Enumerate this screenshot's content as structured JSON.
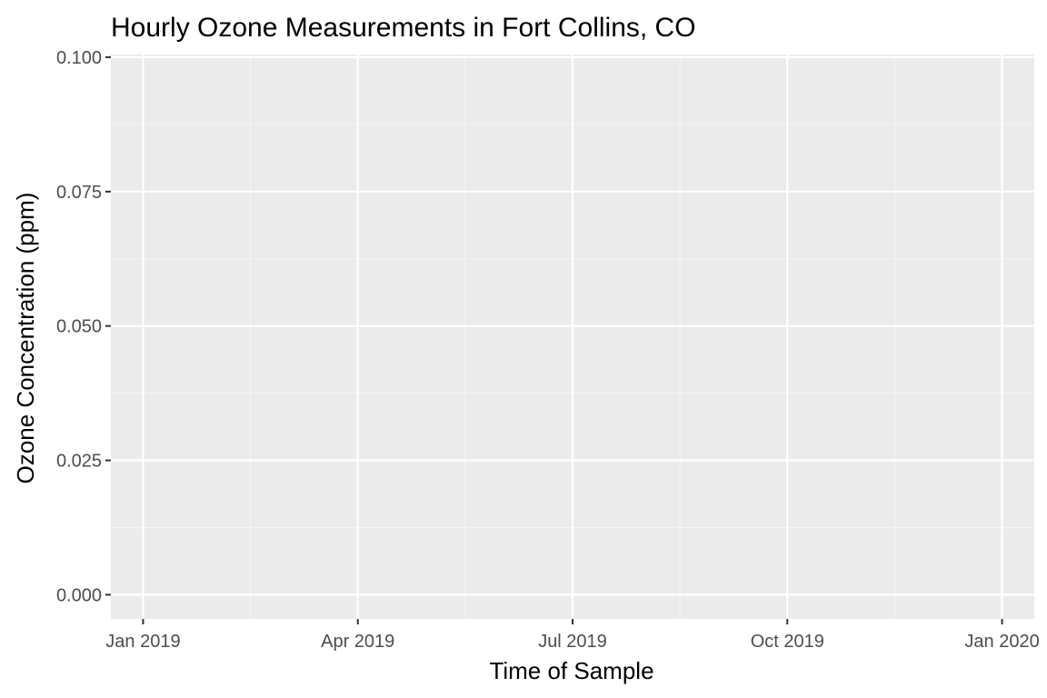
{
  "chart_data": {
    "type": "line",
    "title": "Hourly Ozone Measurements in Fort Collins, CO",
    "xlabel": "Time of Sample",
    "ylabel": "Ozone Concentration (ppm)",
    "ylim": [
      -0.0045,
      0.1005
    ],
    "xlim_months_from_jan_2019": [
      -0.45,
      12.45
    ],
    "y_major_ticks": [
      {
        "value": 0.0,
        "label": "0.000"
      },
      {
        "value": 0.025,
        "label": "0.025"
      },
      {
        "value": 0.05,
        "label": "0.050"
      },
      {
        "value": 0.075,
        "label": "0.075"
      },
      {
        "value": 0.1,
        "label": "0.100"
      }
    ],
    "y_minor_ticks": [
      0.0125,
      0.0375,
      0.0625,
      0.0875
    ],
    "x_major_ticks": [
      {
        "value": 0,
        "label": "Jan 2019"
      },
      {
        "value": 3,
        "label": "Apr 2019"
      },
      {
        "value": 6,
        "label": "Jul 2019"
      },
      {
        "value": 9,
        "label": "Oct 2019"
      },
      {
        "value": 12,
        "label": "Jan 2020"
      }
    ],
    "x_minor_ticks": [
      1.5,
      4.5,
      7.5,
      10.5
    ],
    "series": [],
    "grid": true,
    "colors": {
      "panel_background": "#ebebeb",
      "grid_major": "#ffffff",
      "grid_minor": "#f5f5f5",
      "tick": "#333333"
    }
  }
}
